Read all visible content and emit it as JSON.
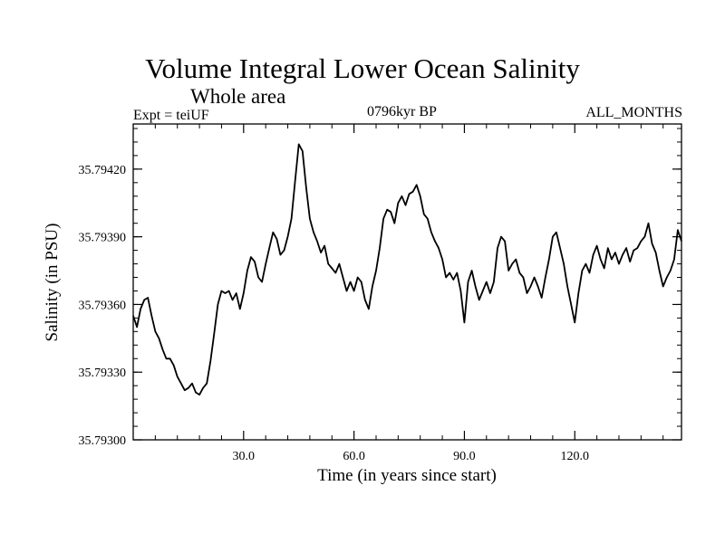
{
  "chart_data": {
    "type": "line",
    "title": "Volume Integral Lower Ocean Salinity",
    "subtitle": "Whole area",
    "left_label": "Expt = teiUF",
    "center_label": "0796kyr BP",
    "right_label": "ALL_MONTHS",
    "xlabel": "Time (in years since start)",
    "ylabel": "Salinity (in PSU)",
    "xlim": [
      0,
      149
    ],
    "ylim": [
      35.793,
      35.7944
    ],
    "x_ticks": [
      30,
      60,
      90,
      120
    ],
    "x_tick_labels": [
      "30.0",
      "60.0",
      "90.0",
      "120.0"
    ],
    "y_ticks": [
      35.793,
      35.7933,
      35.7936,
      35.7939,
      35.7942
    ],
    "y_tick_labels": [
      "35.79300",
      "35.79330",
      "35.79360",
      "35.79390",
      "35.79420"
    ],
    "series": [
      {
        "name": "salinity",
        "x": [
          0,
          1,
          2,
          3,
          4,
          5,
          6,
          7,
          8,
          9,
          10,
          11,
          12,
          13,
          14,
          15,
          16,
          17,
          18,
          19,
          20,
          21,
          22,
          23,
          24,
          25,
          26,
          27,
          28,
          29,
          30,
          31,
          32,
          33,
          34,
          35,
          36,
          37,
          38,
          39,
          40,
          41,
          42,
          43,
          44,
          45,
          46,
          47,
          48,
          49,
          50,
          51,
          52,
          53,
          54,
          55,
          56,
          57,
          58,
          59,
          60,
          61,
          62,
          63,
          64,
          65,
          66,
          67,
          68,
          69,
          70,
          71,
          72,
          73,
          74,
          75,
          76,
          77,
          78,
          79,
          80,
          81,
          82,
          83,
          84,
          85,
          86,
          87,
          88,
          89,
          90,
          91,
          92,
          93,
          94,
          95,
          96,
          97,
          98,
          99,
          100,
          101,
          102,
          103,
          104,
          105,
          106,
          107,
          108,
          109,
          110,
          111,
          112,
          113,
          114,
          115,
          116,
          117,
          118,
          119,
          120,
          121,
          122,
          123,
          124,
          125,
          126,
          127,
          128,
          129,
          130,
          131,
          132,
          133,
          134,
          135,
          136,
          137,
          138,
          139,
          140,
          141,
          142,
          143,
          144,
          145,
          146,
          147,
          148,
          149
        ],
        "values": [
          35.79355,
          35.7935,
          35.79358,
          35.79362,
          35.79363,
          35.79355,
          35.79348,
          35.79345,
          35.7934,
          35.79336,
          35.79336,
          35.79333,
          35.79328,
          35.79325,
          35.79322,
          35.79323,
          35.79325,
          35.79321,
          35.7932,
          35.79323,
          35.79325,
          35.79335,
          35.79347,
          35.7936,
          35.79366,
          35.79365,
          35.79366,
          35.79362,
          35.79365,
          35.79358,
          35.79365,
          35.79375,
          35.79381,
          35.79379,
          35.79372,
          35.7937,
          35.79378,
          35.79385,
          35.79392,
          35.79389,
          35.79382,
          35.79384,
          35.7939,
          35.79398,
          35.79415,
          35.79431,
          35.79428,
          35.79412,
          35.79398,
          35.79392,
          35.79388,
          35.79383,
          35.79386,
          35.79378,
          35.79376,
          35.79374,
          35.79378,
          35.79372,
          35.79366,
          35.7937,
          35.79366,
          35.79372,
          35.7937,
          35.79362,
          35.79358,
          35.79368,
          35.79375,
          35.79385,
          35.79398,
          35.79402,
          35.79401,
          35.79396,
          35.79405,
          35.79408,
          35.79404,
          35.79409,
          35.7941,
          35.79413,
          35.79408,
          35.794,
          35.79398,
          35.79392,
          35.79388,
          35.79385,
          35.7938,
          35.79372,
          35.79374,
          35.79371,
          35.79374,
          35.79366,
          35.79352,
          35.7937,
          35.79375,
          35.79368,
          35.79362,
          35.79366,
          35.7937,
          35.79365,
          35.7937,
          35.79385,
          35.7939,
          35.79388,
          35.79375,
          35.79378,
          35.7938,
          35.79374,
          35.79372,
          35.79365,
          35.79368,
          35.79372,
          35.79368,
          35.79363,
          35.79372,
          35.7938,
          35.7939,
          35.79392,
          35.79385,
          35.79378,
          35.79368,
          35.7936,
          35.79352,
          35.79365,
          35.79375,
          35.79378,
          35.79374,
          35.79382,
          35.79386,
          35.7938,
          35.79376,
          35.79385,
          35.7938,
          35.79383,
          35.79378,
          35.79382,
          35.79385,
          35.79379,
          35.79384,
          35.79385,
          35.79388,
          35.7939,
          35.79396,
          35.79387,
          35.79383,
          35.79375,
          35.79368,
          35.79372,
          35.79375,
          35.7938,
          35.79393,
          35.79388
        ]
      }
    ]
  }
}
